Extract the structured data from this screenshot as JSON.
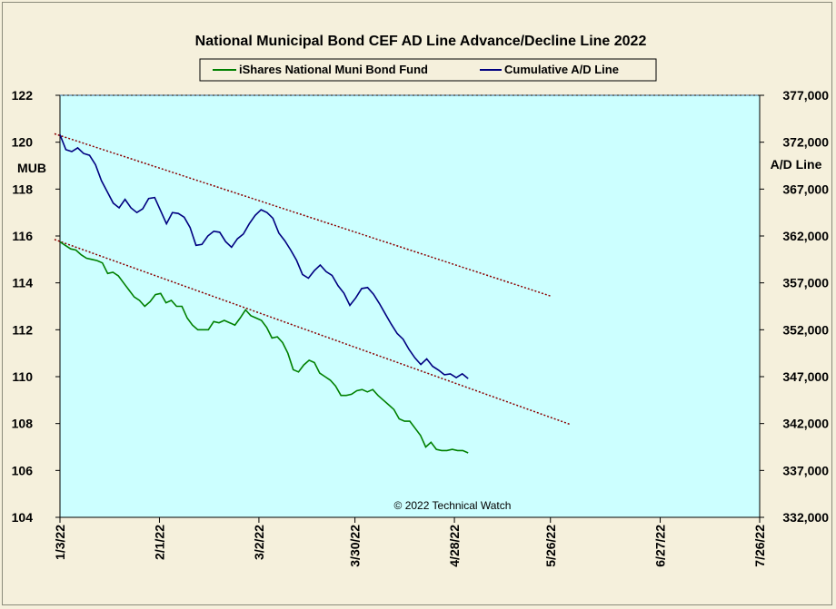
{
  "chart_data": {
    "type": "line",
    "title": "National Municipal Bond CEF AD Line Advance/Decline Line 2022",
    "ylabel_left": "MUB",
    "ylabel_right": "A/D Line",
    "ylim_left": [
      104,
      122
    ],
    "ylim_right": [
      332000,
      377000
    ],
    "yticks_left": [
      "104",
      "106",
      "108",
      "110",
      "112",
      "114",
      "116",
      "118",
      "120",
      "122"
    ],
    "yticks_right": [
      "332,000",
      "337,000",
      "342,000",
      "347,000",
      "352,000",
      "357,000",
      "362,000",
      "367,000",
      "372,000",
      "377,000"
    ],
    "xticks": [
      "1/3/22",
      "2/1/22",
      "3/2/22",
      "3/30/22",
      "4/28/22",
      "5/26/22",
      "6/27/22",
      "7/26/22"
    ],
    "legend": {
      "placement": "top-center"
    },
    "copyright": "© 2022 Technical Watch",
    "colors": {
      "plot_bg": "#ccffff",
      "mub": "#008000",
      "ad": "#000080",
      "trend": "#8b0000"
    },
    "series": [
      {
        "name": "iShares National Muni Bond Fund",
        "axis": "left",
        "color": "#008000",
        "values": [
          115.75,
          115.6,
          115.45,
          115.4,
          115.2,
          115.05,
          115.0,
          114.95,
          114.85,
          114.4,
          114.45,
          114.3,
          114.0,
          113.7,
          113.4,
          113.25,
          113.0,
          113.2,
          113.5,
          113.55,
          113.15,
          113.25,
          113.0,
          113.0,
          112.5,
          112.2,
          112.0,
          112.0,
          112.0,
          112.35,
          112.3,
          112.4,
          112.3,
          112.2,
          112.5,
          112.85,
          112.6,
          112.5,
          112.4,
          112.1,
          111.65,
          111.7,
          111.45,
          111.0,
          110.3,
          110.2,
          110.5,
          110.7,
          110.6,
          110.15,
          110.0,
          109.85,
          109.6,
          109.2,
          109.2,
          109.25,
          109.4,
          109.45,
          109.35,
          109.45,
          109.2,
          109.0,
          108.8,
          108.6,
          108.2,
          108.1,
          108.1,
          107.8,
          107.5,
          107.0,
          107.2,
          106.9,
          106.85,
          106.85,
          106.9,
          106.85,
          106.85,
          106.75
        ]
      },
      {
        "name": "Cumulative A/D Line",
        "axis": "right",
        "color": "#000080",
        "values": [
          372800,
          371200,
          371000,
          371400,
          370800,
          370600,
          369600,
          367900,
          366700,
          365500,
          365000,
          365900,
          365000,
          364500,
          364900,
          366000,
          366100,
          364700,
          363300,
          364500,
          364400,
          364000,
          362900,
          361000,
          361100,
          362000,
          362500,
          362400,
          361400,
          360800,
          361700,
          362200,
          363300,
          364200,
          364800,
          364500,
          363900,
          362300,
          361500,
          360500,
          359400,
          357900,
          357500,
          358300,
          358900,
          358200,
          357800,
          356700,
          355900,
          354600,
          355400,
          356400,
          356500,
          355800,
          354800,
          353700,
          352600,
          351600,
          351000,
          349900,
          349000,
          348300,
          348900,
          348100,
          347700,
          347200,
          347300,
          346900,
          347300,
          346800
        ]
      }
    ],
    "trendlines": [
      {
        "axis": "right",
        "from": [
          "1/3/22",
          372900
        ],
        "to": [
          "5/26/22",
          355600
        ]
      },
      {
        "axis": "left",
        "from": [
          "1/3/22",
          115.85
        ],
        "to": [
          "6/1/22",
          107.95
        ]
      }
    ]
  }
}
